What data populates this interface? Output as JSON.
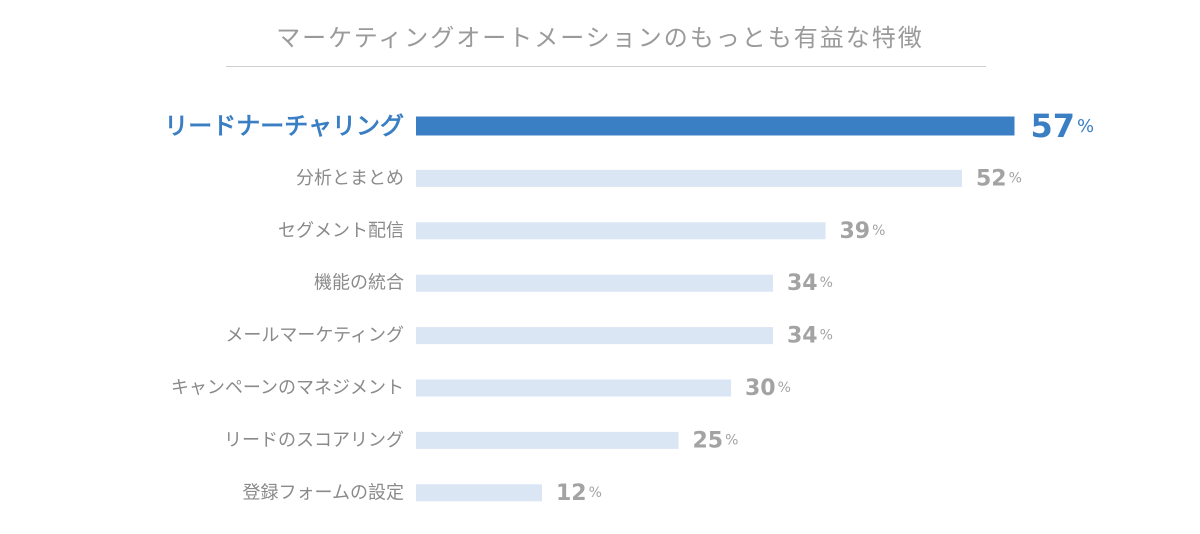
{
  "chart_data": {
    "type": "bar",
    "orientation": "horizontal",
    "title": "マーケティングオートメーションのもっとも有益な特徴",
    "xlabel": "",
    "ylabel": "",
    "unit": "%",
    "categories": [
      "リードナーチャリング",
      "分析とまとめ",
      "セグメント配信",
      "機能の統合",
      "メールマーケティング",
      "キャンペーンのマネジメント",
      "リードのスコアリング",
      "登録フォームの設定"
    ],
    "values": [
      57,
      52,
      39,
      34,
      34,
      30,
      25,
      12
    ],
    "highlight_index": 0,
    "colors": {
      "highlight_bar": "#3a7fc4",
      "bar": "#dae6f3",
      "highlight_text": "#3a7fc4",
      "label_text": "#8a8a8a",
      "value_text": "#a3a3a3",
      "title_text": "#9a9a9a"
    },
    "grid": false,
    "legend": "none"
  }
}
